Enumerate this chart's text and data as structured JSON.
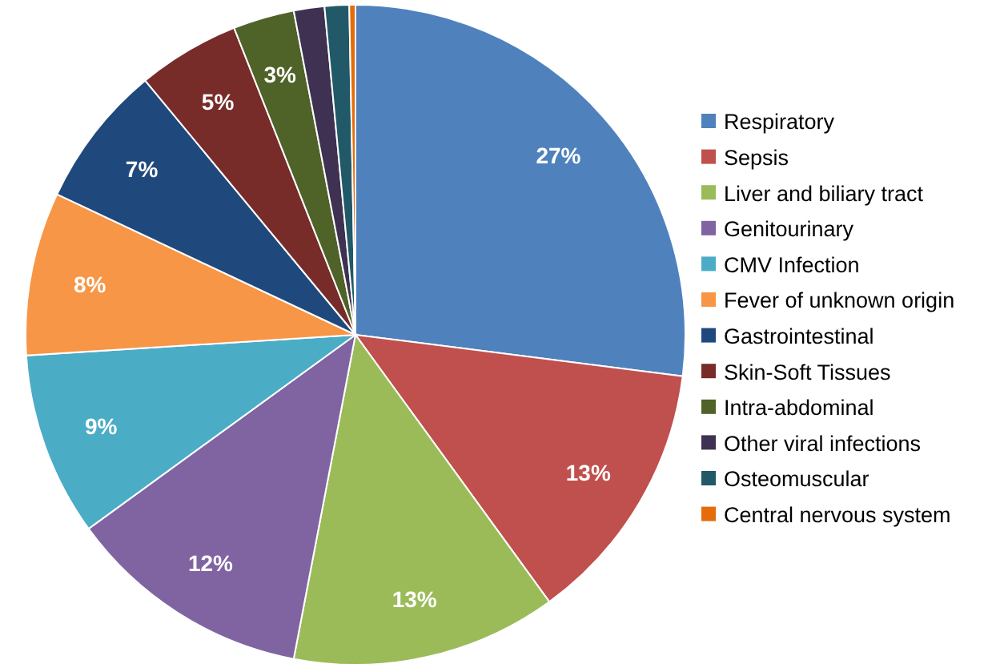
{
  "chart_data": {
    "type": "pie",
    "legend": "right",
    "categories": [
      "Respiratory",
      "Sepsis",
      "Liver and biliary tract",
      "Genitourinary",
      "CMV Infection",
      "Fever of unknown origin",
      "Gastrointestinal",
      "Skin-Soft Tissues",
      "Intra-abdominal",
      "Other viral infections",
      "Osteomuscular",
      "Central nervous system"
    ],
    "values": [
      27,
      13,
      13,
      12,
      9,
      8,
      7,
      5,
      3,
      1.5,
      1.2,
      0.3
    ],
    "value_labels": [
      "27%",
      "13%",
      "13%",
      "12%",
      "9%",
      "8%",
      "7%",
      "5%",
      "3%",
      null,
      null,
      null
    ],
    "colors": [
      "#4f81bd",
      "#c0504d",
      "#9bbb59",
      "#8064a2",
      "#4bacc6",
      "#f79646",
      "#1f497d",
      "#772c2a",
      "#4f6228",
      "#3f3151",
      "#215968",
      "#e46c0a"
    ]
  }
}
